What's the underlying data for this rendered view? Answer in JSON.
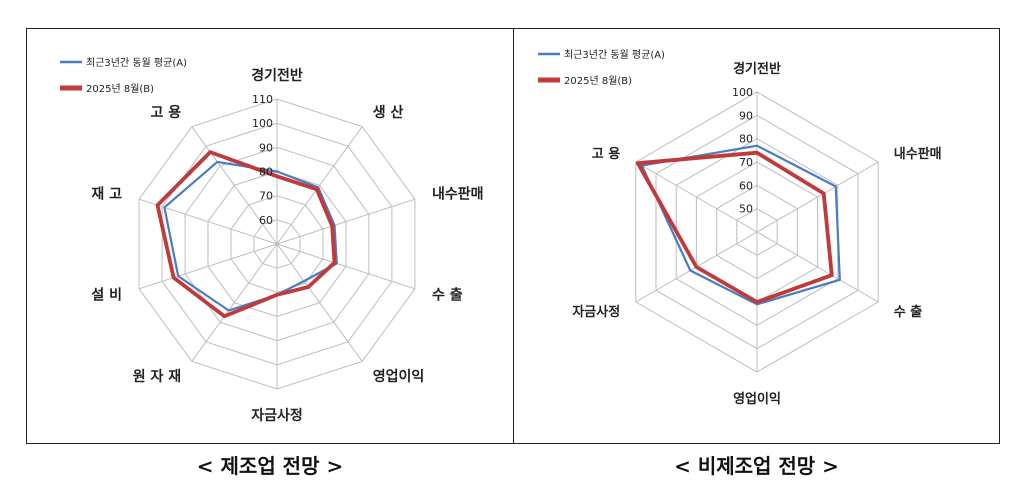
{
  "legend": {
    "series_a": "최근3년간 동월 평균(A)",
    "series_b": "2025년 8월(B)"
  },
  "colors": {
    "series_a": "#4a7cc4",
    "series_b": "#c0393b",
    "grid": "#bdbdbd"
  },
  "captions": {
    "left": "< 제조업 전망 >",
    "right": "< 비제조업 전망 >"
  },
  "chart_data": [
    {
      "type": "radar",
      "categories": [
        "경기전반",
        "생 산",
        "내수판매",
        "수 출",
        "영업이익",
        "자금사정",
        "원 자 재",
        "설 비",
        "재 고",
        "고 용"
      ],
      "series": [
        {
          "name": "최근3년간 동월 평균(A)",
          "values": [
            80,
            79,
            75,
            76,
            69,
            71,
            84,
            93,
            99,
            92
          ]
        },
        {
          "name": "2025년 8월(B)",
          "values": [
            78,
            78,
            74,
            75,
            72,
            71,
            87,
            95,
            102,
            97
          ]
        }
      ],
      "ticks": [
        60,
        70,
        80,
        90,
        100,
        110
      ],
      "rlim": [
        50,
        110
      ],
      "grid": true,
      "legend_position": "top-left"
    },
    {
      "type": "radar",
      "categories": [
        "경기전반",
        "내수판매",
        "수 출",
        "영업이익",
        "자금사정",
        "고 용"
      ],
      "series": [
        {
          "name": "최근3년간 동월 평균(A)",
          "values": [
            77,
            79,
            81,
            71,
            73,
            97
          ]
        },
        {
          "name": "2025년 8월(B)",
          "values": [
            74,
            73,
            77,
            70,
            70,
            99
          ]
        }
      ],
      "ticks": [
        50,
        60,
        70,
        80,
        90,
        100
      ],
      "rlim": [
        40,
        100
      ],
      "grid": true,
      "legend_position": "top-left"
    }
  ]
}
